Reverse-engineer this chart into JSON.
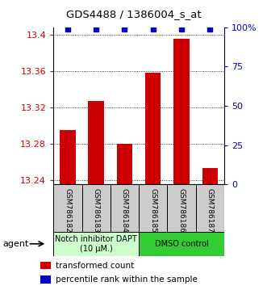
{
  "title": "GDS4488 / 1386004_s_at",
  "samples": [
    "GSM786182",
    "GSM786183",
    "GSM786184",
    "GSM786185",
    "GSM786186",
    "GSM786187"
  ],
  "transformed_counts": [
    13.295,
    13.327,
    13.28,
    13.358,
    13.395,
    13.253
  ],
  "percentile_ranks": [
    99,
    99,
    99,
    99,
    99,
    99
  ],
  "ylim_left": [
    13.235,
    13.408
  ],
  "ylim_right": [
    0,
    100
  ],
  "yticks_left": [
    13.24,
    13.28,
    13.32,
    13.36,
    13.4
  ],
  "ytick_labels_left": [
    "13.24",
    "13.28",
    "13.32",
    "13.36",
    "13.4"
  ],
  "yticks_right": [
    0,
    25,
    50,
    75,
    100
  ],
  "ytick_labels_right": [
    "0",
    "25",
    "50",
    "75",
    "100%"
  ],
  "bar_color": "#cc0000",
  "dot_color": "#0000cc",
  "bg_color": "#ffffff",
  "sample_box_color": "#cccccc",
  "groups": [
    {
      "label": "Notch inhibitor DAPT\n(10 μM.)",
      "span": [
        0,
        3
      ],
      "color": "#ccffcc",
      "border": "#006600"
    },
    {
      "label": "DMSO control",
      "span": [
        3,
        6
      ],
      "color": "#33cc33",
      "border": "#006600"
    }
  ],
  "agent_label": "agent",
  "legend_items": [
    {
      "color": "#cc0000",
      "label": "transformed count"
    },
    {
      "color": "#0000cc",
      "label": "percentile rank within the sample"
    }
  ],
  "bar_width": 0.55
}
